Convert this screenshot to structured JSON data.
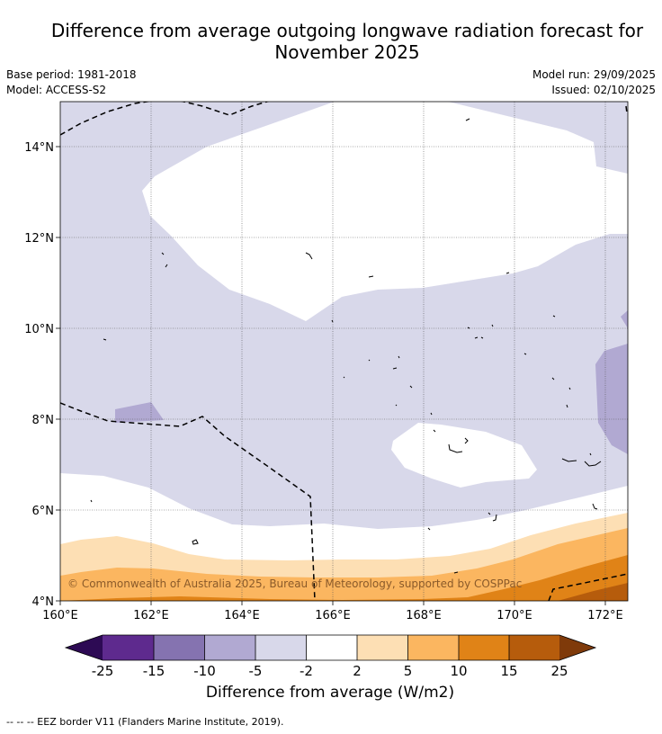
{
  "title_line1": "Difference from average outgoing longwave radiation forecast for",
  "title_line2": "November 2025",
  "base_period": "Base period: 1981-2018",
  "model": "Model: ACCESS-S2",
  "model_run": "Model run: 29/09/2025",
  "issued": "Issued: 02/10/2025",
  "copyright": "© Commonwealth of Australia 2025, Bureau of Meteorology, supported by COSPPac",
  "lat_labels": [
    "14°N",
    "12°N",
    "10°N",
    "8°N",
    "6°N",
    "4°N"
  ],
  "lon_labels": [
    "160°E",
    "162°E",
    "164°E",
    "166°E",
    "168°E",
    "170°E",
    "172°E"
  ],
  "colorbar": {
    "title": "Difference from average (W/m2)",
    "tick_labels": [
      "-25",
      "-15",
      "-10",
      "-5",
      "-2",
      "2",
      "5",
      "10",
      "15",
      "25"
    ],
    "colors": [
      "#2d0a54",
      "#5e2a8e",
      "#8573b0",
      "#b1a9d2",
      "#d8d8ea",
      "#ffffff",
      "#fddfb4",
      "#fbb660",
      "#e08317",
      "#b65c0c",
      "#7f3a0a"
    ]
  },
  "footer": "--  --  -- EEZ border V11 (Flanders Marine Institute, 2019)."
}
